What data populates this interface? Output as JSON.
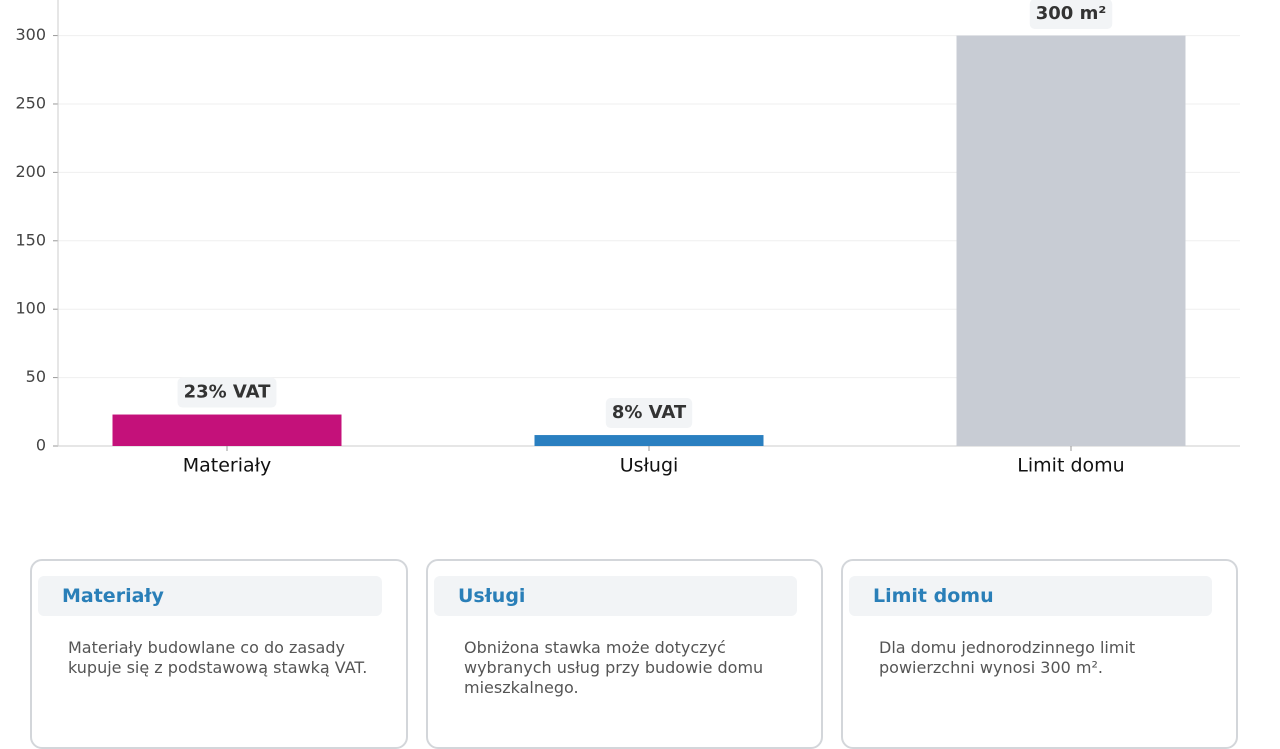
{
  "chart_data": {
    "type": "bar",
    "categories": [
      "Materiały",
      "Usługi",
      "Limit domu"
    ],
    "values": [
      23,
      8,
      300
    ],
    "value_labels": [
      "23% VAT",
      "8% VAT",
      "300 m²"
    ],
    "colors": [
      "#c4117a",
      "#2a7fc0",
      "#c8ccd4"
    ],
    "ylim": [
      0,
      326
    ],
    "yticks": [
      0,
      50,
      100,
      150,
      200,
      250,
      300
    ],
    "grid": true
  },
  "cards": [
    {
      "title": "Materiały",
      "text": "Materiały budowlane co do zasady kupuje się z podstawową stawką VAT."
    },
    {
      "title": "Usługi",
      "text": "Obniżona stawka może dotyczyć wybranych usług przy budowie domu mieszkalnego."
    },
    {
      "title": "Limit domu",
      "text": "Dla domu jednorodzinnego limit powierzchni wynosi 300 m²."
    }
  ]
}
